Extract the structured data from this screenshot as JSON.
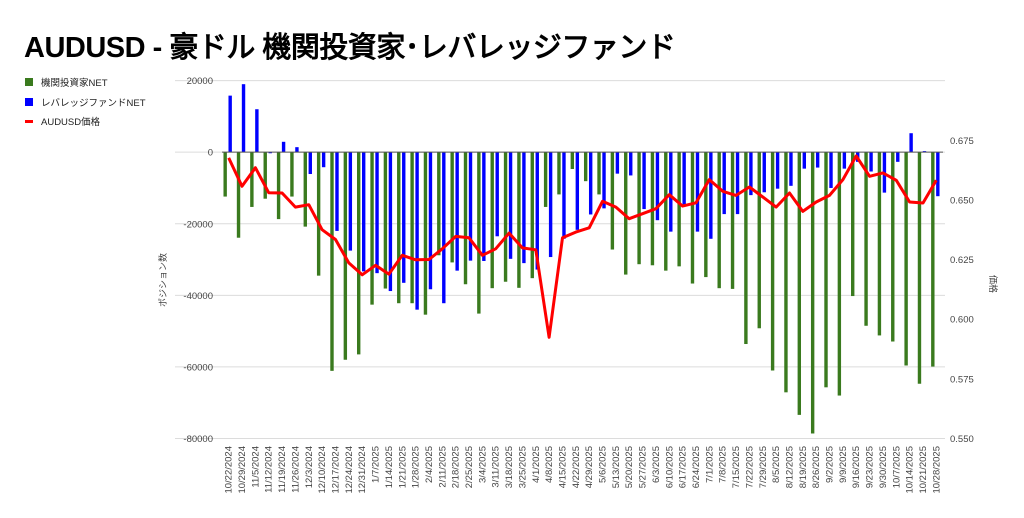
{
  "chart_data": {
    "type": "bar",
    "title": "AUDUSD - 豪ドル 機関投資家･レバレッジファンド",
    "xlabel": "",
    "ylabel": "ポジション数",
    "y2label": "価格",
    "ylim": [
      -80000,
      20000
    ],
    "y2lim": [
      0.55,
      0.7
    ],
    "yticks": [
      "20000",
      "0",
      "-20000",
      "-40000",
      "-60000",
      "-80000"
    ],
    "y2ticks": [
      "0.675",
      "0.650",
      "0.625",
      "0.600",
      "0.575",
      "0.550"
    ],
    "legend_position": "left",
    "grid": true,
    "colors": {
      "institutional": "#3a7a1e",
      "leveraged": "#0000ff",
      "price": "#ff0000"
    },
    "categories": [
      "10/22/2024",
      "10/29/2024",
      "11/5/2024",
      "11/12/2024",
      "11/19/2024",
      "11/26/2024",
      "12/3/2024",
      "12/10/2024",
      "12/17/2024",
      "12/24/2024",
      "12/31/2024",
      "1/7/2025",
      "1/14/2025",
      "1/21/2025",
      "1/28/2025",
      "2/4/2025",
      "2/11/2025",
      "2/18/2025",
      "2/25/2025",
      "3/4/2025",
      "3/11/2025",
      "3/18/2025",
      "3/25/2025",
      "4/1/2025",
      "4/8/2025",
      "4/15/2025",
      "4/22/2025",
      "4/29/2025",
      "5/6/2025",
      "5/13/2025",
      "5/20/2025",
      "5/27/2025",
      "6/3/2025",
      "6/10/2025",
      "6/17/2025",
      "6/24/2025",
      "7/1/2025",
      "7/8/2025",
      "7/15/2025",
      "7/22/2025",
      "7/29/2025",
      "8/5/2025",
      "8/12/2025",
      "8/19/2025",
      "8/26/2025",
      "9/2/2025",
      "9/9/2025",
      "9/16/2025",
      "9/23/2025",
      "9/30/2025",
      "10/7/2025",
      "10/14/2025",
      "10/21/2025",
      "10/28/2025"
    ],
    "series": [
      {
        "name": "機関投資家NET",
        "type": "bar",
        "axis": "left",
        "values": [
          -12400,
          -23900,
          -15300,
          -13000,
          -18700,
          -12400,
          -20800,
          -34500,
          -61100,
          -58000,
          -56500,
          -42600,
          -38100,
          -42200,
          -42200,
          -45400,
          -28800,
          -30800,
          -36900,
          -45100,
          -38000,
          -36200,
          -37900,
          -35200,
          -15300,
          -11800,
          -4700,
          -8100,
          -11800,
          -27200,
          -34200,
          -31300,
          -31600,
          -33100,
          -31900,
          -36700,
          -34900,
          -38000,
          -38200,
          -53600,
          -49200,
          -61000,
          -67100,
          -73400,
          -78600,
          -65700,
          -68000,
          -40200,
          -48500,
          -51200,
          -52900,
          -59600,
          -64700,
          -59900
        ]
      },
      {
        "name": "レバレッジファンドNET",
        "type": "bar",
        "axis": "left",
        "values": [
          15800,
          19000,
          12000,
          -300,
          2900,
          1400,
          -6100,
          -4200,
          -22000,
          -27500,
          -33300,
          -33800,
          -38800,
          -36500,
          -44000,
          -38300,
          -42200,
          -33100,
          -30300,
          -30400,
          -23500,
          -29800,
          -31000,
          -32800,
          -29300,
          -24200,
          -21700,
          -17400,
          -15700,
          -6000,
          -6500,
          -15900,
          -19000,
          -22200,
          -14600,
          -22200,
          -24200,
          -17300,
          -17300,
          -12000,
          -11200,
          -10200,
          -9400,
          -4600,
          -4300,
          -10000,
          -4600,
          -2700,
          -5400,
          -11300,
          -2700,
          5300,
          300,
          -12300
        ]
      },
      {
        "name": "AUDUSD価格",
        "type": "line",
        "axis": "right",
        "values": [
          0.6676,
          0.6557,
          0.6635,
          0.653,
          0.6529,
          0.647,
          0.648,
          0.6375,
          0.6334,
          0.6236,
          0.6186,
          0.6226,
          0.6189,
          0.6268,
          0.6249,
          0.625,
          0.6295,
          0.6347,
          0.6341,
          0.6268,
          0.6295,
          0.6361,
          0.6299,
          0.6291,
          0.5924,
          0.6341,
          0.6365,
          0.6383,
          0.6494,
          0.647,
          0.6421,
          0.6442,
          0.6463,
          0.6522,
          0.6474,
          0.6488,
          0.6585,
          0.6536,
          0.6519,
          0.6554,
          0.6512,
          0.647,
          0.6529,
          0.6452,
          0.6491,
          0.6519,
          0.6585,
          0.6684,
          0.6599,
          0.6613,
          0.6582,
          0.6491,
          0.6487,
          0.6582
        ]
      }
    ]
  }
}
